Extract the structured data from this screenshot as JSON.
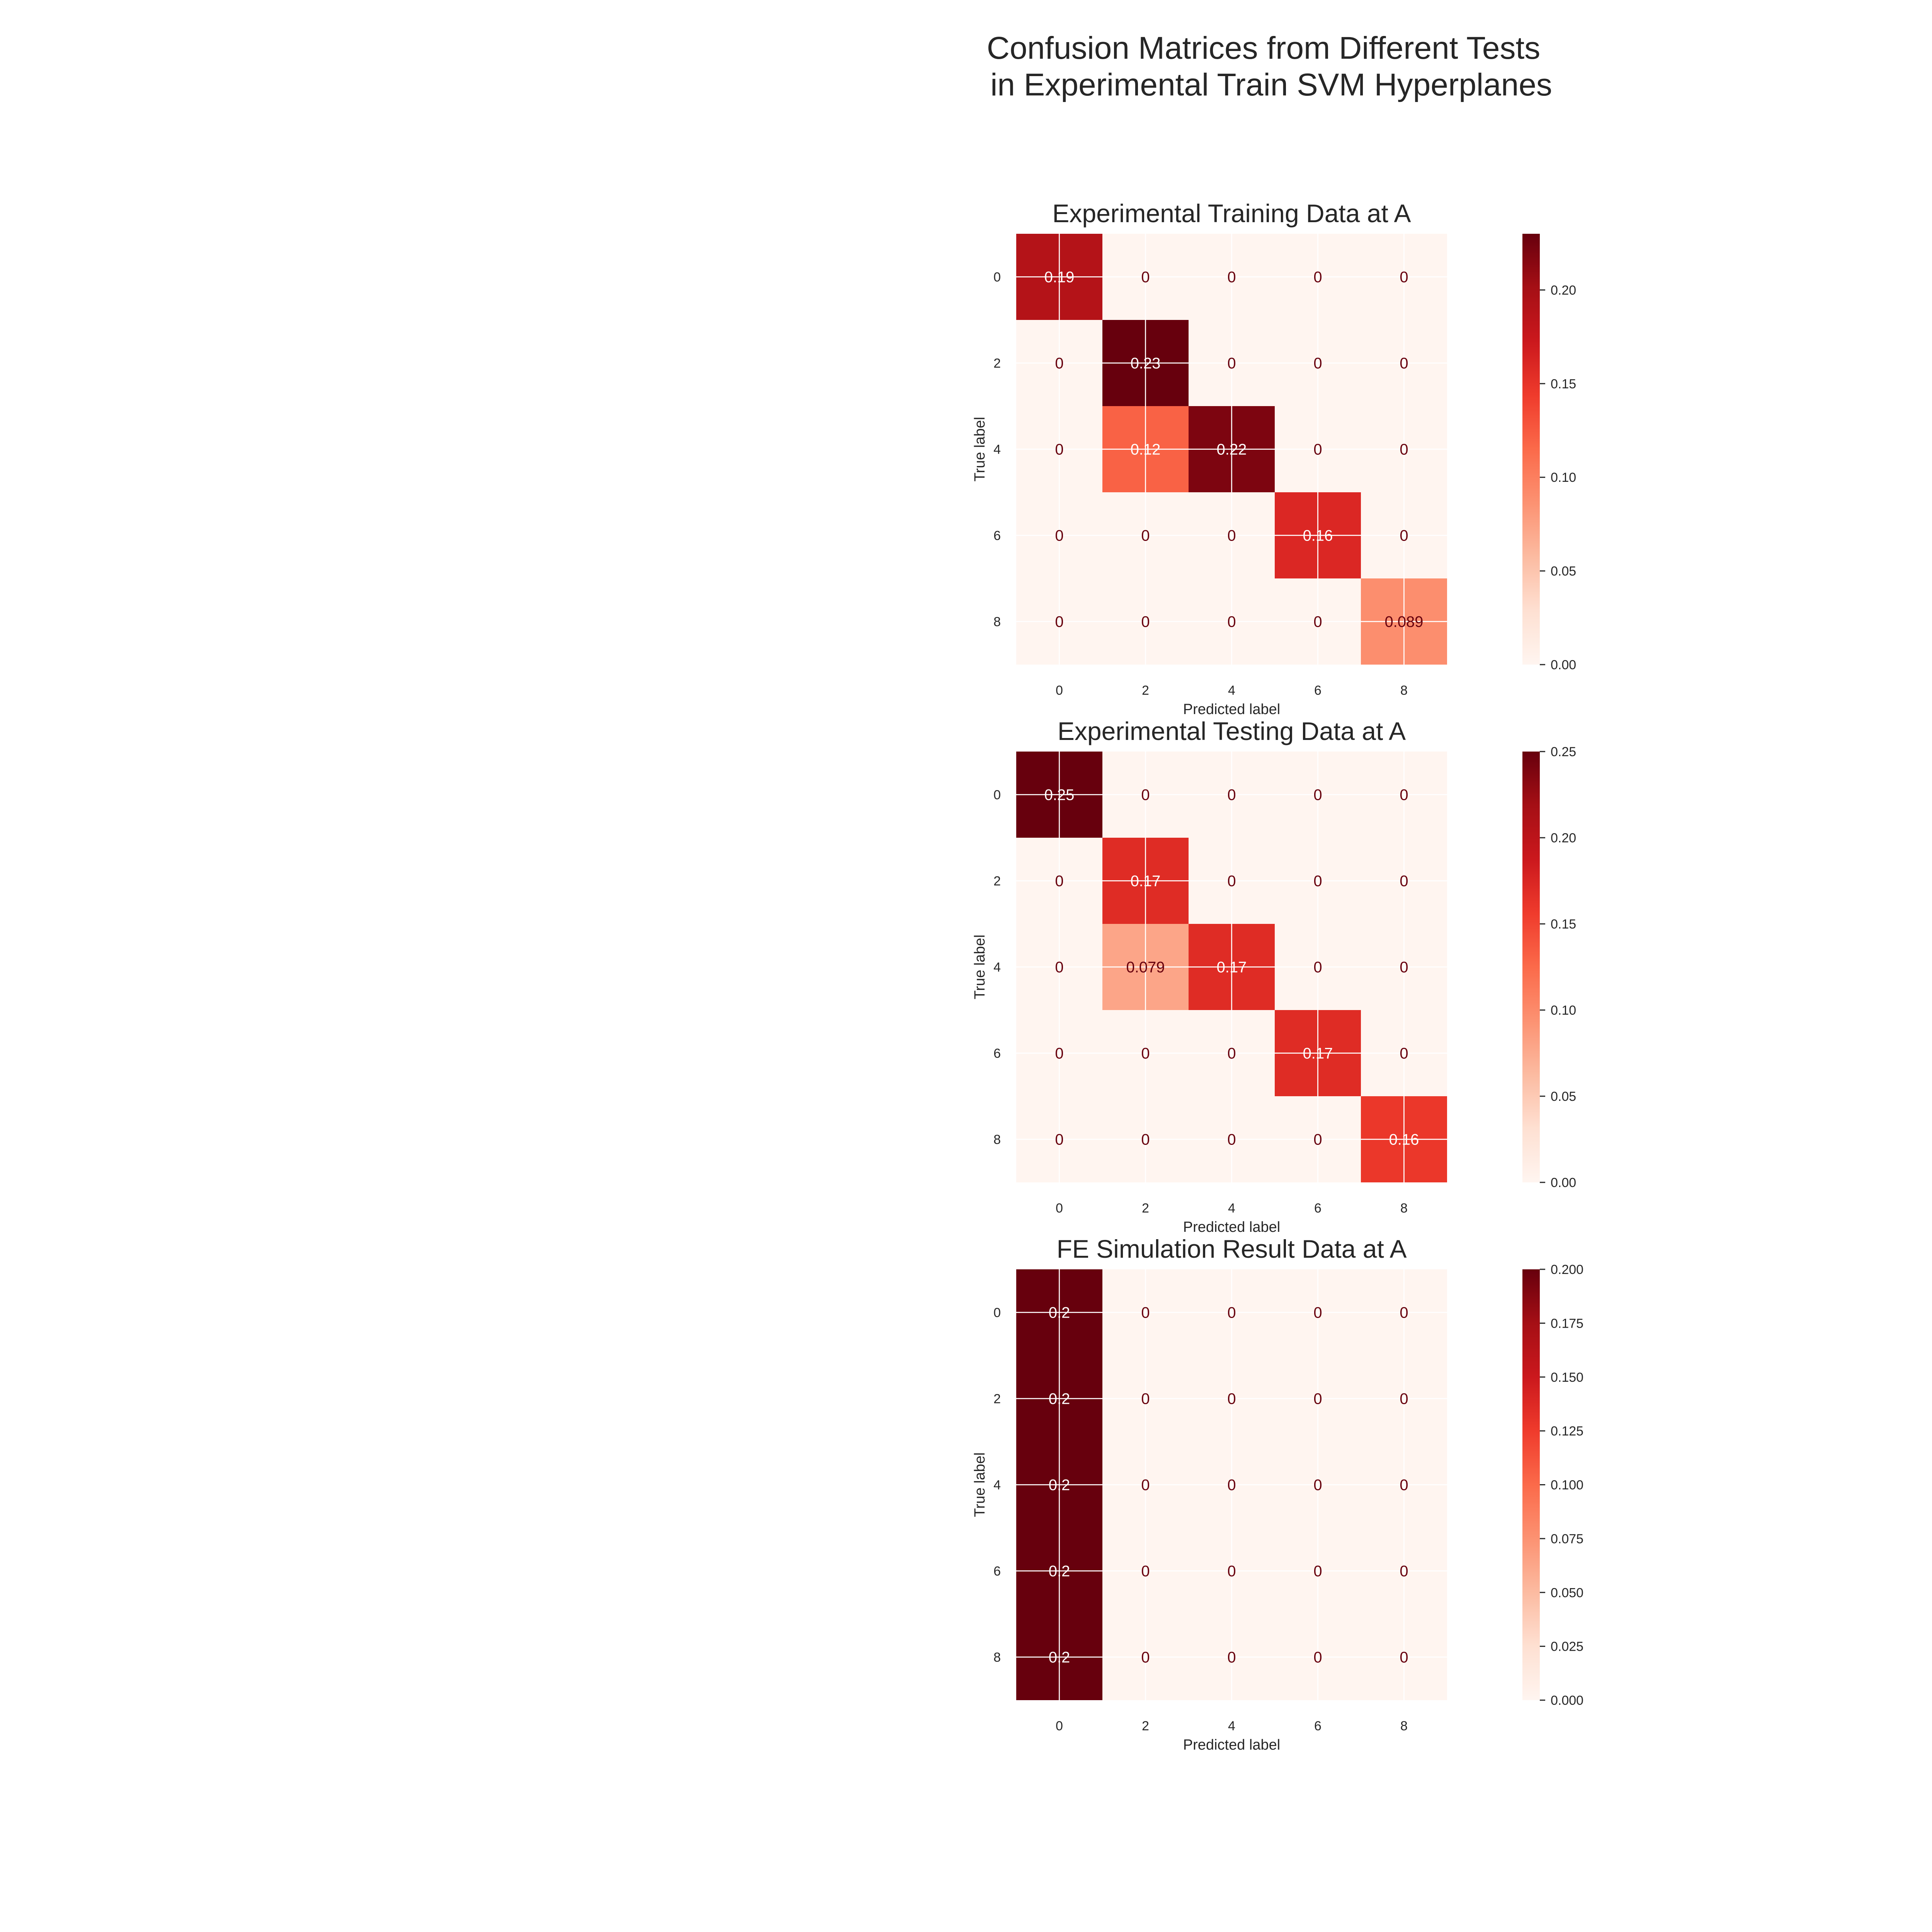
{
  "figure": {
    "title_line1": "Confusion Matrices from Different Tests",
    "title_line2": "in Experimental Train SVM Hyperplanes"
  },
  "chart_data": [
    {
      "type": "heatmap",
      "title": "Experimental Training Data at A",
      "xlabel": "Predicted label",
      "ylabel": "True label",
      "x_ticks": [
        "0",
        "2",
        "4",
        "6",
        "8"
      ],
      "y_ticks": [
        "0",
        "2",
        "4",
        "6",
        "8"
      ],
      "values": [
        [
          0.19,
          0,
          0,
          0,
          0
        ],
        [
          0,
          0.23,
          0,
          0,
          0
        ],
        [
          0,
          0.12,
          0.22,
          0,
          0
        ],
        [
          0,
          0,
          0,
          0.16,
          0
        ],
        [
          0,
          0,
          0,
          0,
          0.089
        ]
      ],
      "cell_labels": [
        [
          "0.19",
          "0",
          "0",
          "0",
          "0"
        ],
        [
          "0",
          "0.23",
          "0",
          "0",
          "0"
        ],
        [
          "0",
          "0.12",
          "0.22",
          "0",
          "0"
        ],
        [
          "0",
          "0",
          "0",
          "0.16",
          "0"
        ],
        [
          "0",
          "0",
          "0",
          "0",
          "0.089"
        ]
      ],
      "colorbar": {
        "min": 0,
        "max": 0.23,
        "ticks": [
          0,
          0.05,
          0.1,
          0.15,
          0.2
        ],
        "tick_labels": [
          "0.00",
          "0.05",
          "0.10",
          "0.15",
          "0.20"
        ]
      },
      "colormap": "Reds",
      "grid": true
    },
    {
      "type": "heatmap",
      "title": "Experimental Testing Data at A",
      "xlabel": "Predicted label",
      "ylabel": "True label",
      "x_ticks": [
        "0",
        "2",
        "4",
        "6",
        "8"
      ],
      "y_ticks": [
        "0",
        "2",
        "4",
        "6",
        "8"
      ],
      "values": [
        [
          0.25,
          0,
          0,
          0,
          0
        ],
        [
          0,
          0.17,
          0,
          0,
          0
        ],
        [
          0,
          0.079,
          0.17,
          0,
          0
        ],
        [
          0,
          0,
          0,
          0.17,
          0
        ],
        [
          0,
          0,
          0,
          0,
          0.16
        ]
      ],
      "cell_labels": [
        [
          "0.25",
          "0",
          "0",
          "0",
          "0"
        ],
        [
          "0",
          "0.17",
          "0",
          "0",
          "0"
        ],
        [
          "0",
          "0.079",
          "0.17",
          "0",
          "0"
        ],
        [
          "0",
          "0",
          "0",
          "0.17",
          "0"
        ],
        [
          "0",
          "0",
          "0",
          "0",
          "0.16"
        ]
      ],
      "colorbar": {
        "min": 0,
        "max": 0.25,
        "ticks": [
          0,
          0.05,
          0.1,
          0.15,
          0.2,
          0.25
        ],
        "tick_labels": [
          "0.00",
          "0.05",
          "0.10",
          "0.15",
          "0.20",
          "0.25"
        ]
      },
      "colormap": "Reds",
      "grid": true
    },
    {
      "type": "heatmap",
      "title": "FE Simulation Result Data at A",
      "xlabel": "Predicted label",
      "ylabel": "True label",
      "x_ticks": [
        "0",
        "2",
        "4",
        "6",
        "8"
      ],
      "y_ticks": [
        "0",
        "2",
        "4",
        "6",
        "8"
      ],
      "values": [
        [
          0.2,
          0,
          0,
          0,
          0
        ],
        [
          0.2,
          0,
          0,
          0,
          0
        ],
        [
          0.2,
          0,
          0,
          0,
          0
        ],
        [
          0.2,
          0,
          0,
          0,
          0
        ],
        [
          0.2,
          0,
          0,
          0,
          0
        ]
      ],
      "cell_labels": [
        [
          "0.2",
          "0",
          "0",
          "0",
          "0"
        ],
        [
          "0.2",
          "0",
          "0",
          "0",
          "0"
        ],
        [
          "0.2",
          "0",
          "0",
          "0",
          "0"
        ],
        [
          "0.2",
          "0",
          "0",
          "0",
          "0"
        ],
        [
          "0.2",
          "0",
          "0",
          "0",
          "0"
        ]
      ],
      "colorbar": {
        "min": 0,
        "max": 0.2,
        "ticks": [
          0,
          0.025,
          0.05,
          0.075,
          0.1,
          0.125,
          0.15,
          0.175,
          0.2
        ],
        "tick_labels": [
          "0.000",
          "0.025",
          "0.050",
          "0.075",
          "0.100",
          "0.125",
          "0.150",
          "0.175",
          "0.200"
        ]
      },
      "colormap": "Reds",
      "grid": true
    }
  ]
}
